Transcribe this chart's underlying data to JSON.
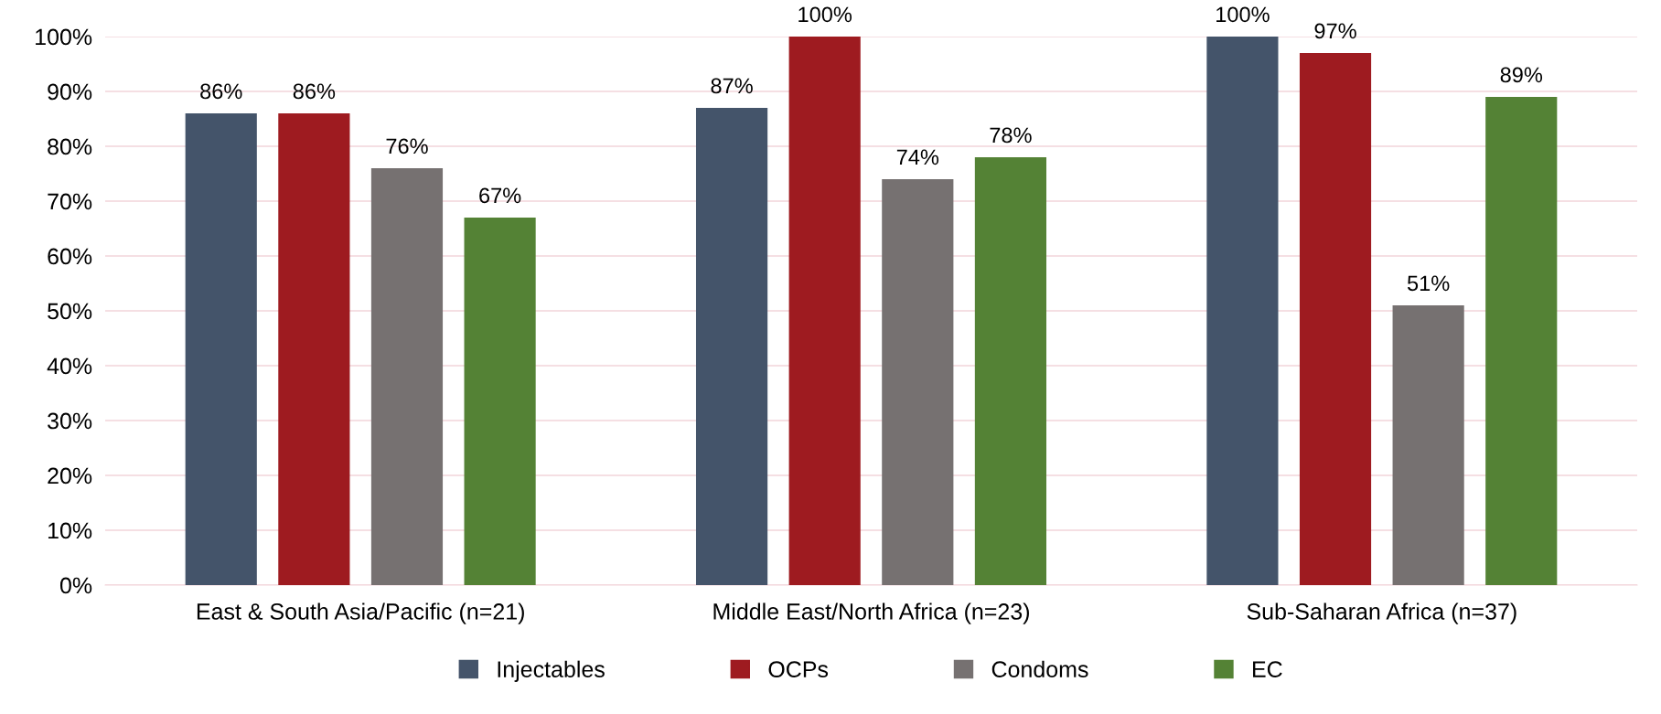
{
  "chart_data": {
    "type": "bar",
    "categories": [
      "East & South Asia/Pacific (n=21)",
      "Middle East/North Africa (n=23)",
      "Sub-Saharan Africa (n=37)"
    ],
    "series": [
      {
        "name": "Injectables",
        "color": "#44546a",
        "values": [
          86,
          87,
          100
        ],
        "value_labels": [
          "86%",
          "87%",
          "100%"
        ]
      },
      {
        "name": "OCPs",
        "color": "#9e1b20",
        "values": [
          86,
          100,
          97
        ],
        "value_labels": [
          "86%",
          "100%",
          "97%"
        ]
      },
      {
        "name": "Condoms",
        "color": "#767171",
        "values": [
          76,
          74,
          51
        ],
        "value_labels": [
          "76%",
          "74%",
          "51%"
        ]
      },
      {
        "name": "EC",
        "color": "#548235",
        "values": [
          67,
          78,
          89
        ],
        "value_labels": [
          "67%",
          "78%",
          "89%"
        ]
      }
    ],
    "ylim": [
      0,
      100
    ],
    "yticks": [
      {
        "value": 0,
        "label": "0%"
      },
      {
        "value": 10,
        "label": "10%"
      },
      {
        "value": 20,
        "label": "20%"
      },
      {
        "value": 30,
        "label": "30%"
      },
      {
        "value": 40,
        "label": "40%"
      },
      {
        "value": 50,
        "label": "50%"
      },
      {
        "value": 60,
        "label": "60%"
      },
      {
        "value": 70,
        "label": "70%"
      },
      {
        "value": 80,
        "label": "80%"
      },
      {
        "value": 90,
        "label": "90%"
      },
      {
        "value": 100,
        "label": "100%"
      }
    ],
    "grid": "y",
    "legend": "bottom"
  }
}
